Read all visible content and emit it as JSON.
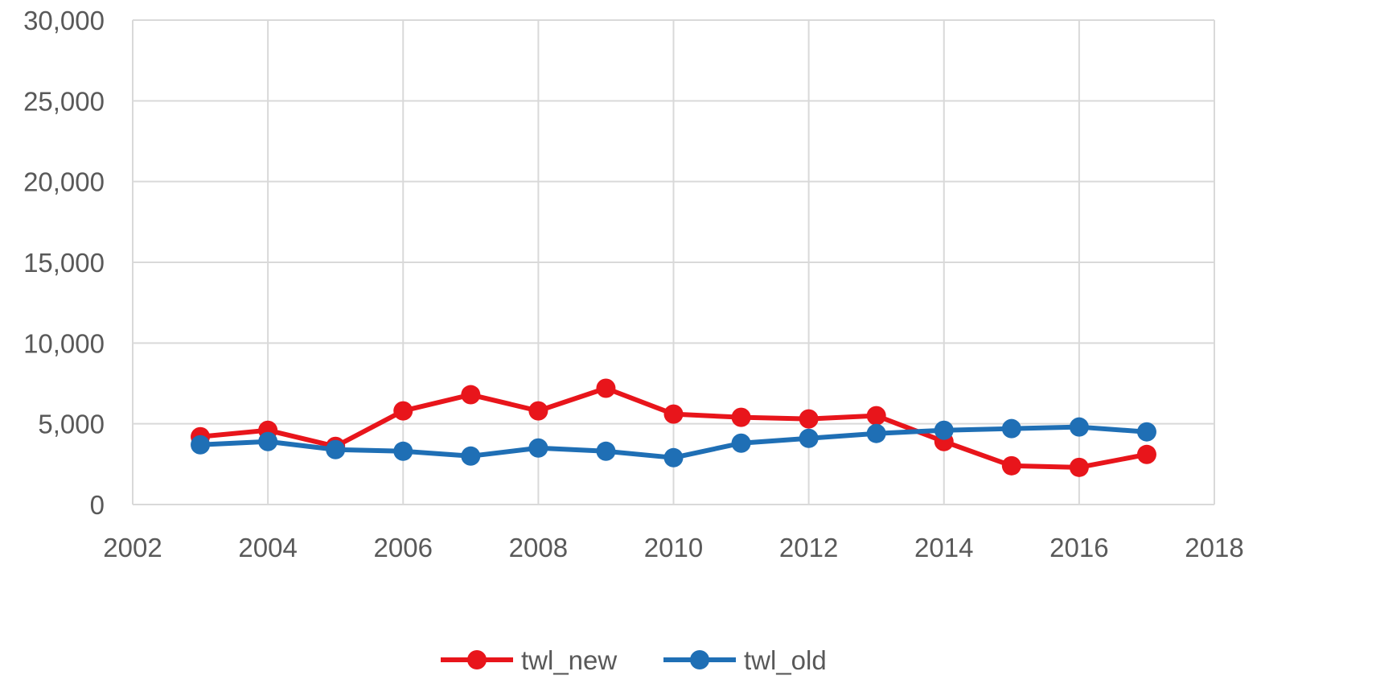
{
  "chart_data": {
    "type": "line",
    "title": "",
    "xlabel": "",
    "ylabel": "",
    "xlim": [
      2002,
      2018
    ],
    "ylim": [
      0,
      30000
    ],
    "x_ticks": [
      2002,
      2004,
      2006,
      2008,
      2010,
      2012,
      2014,
      2016,
      2018
    ],
    "x_tick_labels": [
      "2002",
      "2004",
      "2006",
      "2008",
      "2010",
      "2012",
      "2014",
      "2016",
      "2018"
    ],
    "y_ticks": [
      0,
      5000,
      10000,
      15000,
      20000,
      25000,
      30000
    ],
    "y_tick_labels": [
      "0",
      "5,000",
      "10,000",
      "15,000",
      "20,000",
      "25,000",
      "30,000"
    ],
    "grid": true,
    "legend_position": "bottom",
    "x": [
      2003,
      2004,
      2005,
      2006,
      2007,
      2008,
      2009,
      2010,
      2011,
      2012,
      2013,
      2014,
      2015,
      2016,
      2017
    ],
    "series": [
      {
        "name": "twl_new",
        "color": "#e8151b",
        "values": [
          4200,
          4600,
          3600,
          5800,
          6800,
          5800,
          7200,
          5600,
          5400,
          5300,
          5500,
          3900,
          2400,
          2300,
          3100
        ]
      },
      {
        "name": "twl_old",
        "color": "#1f6fb5",
        "values": [
          3700,
          3900,
          3400,
          3300,
          3000,
          3500,
          3300,
          2900,
          3800,
          4100,
          4400,
          4600,
          4700,
          4800,
          4500
        ]
      }
    ]
  }
}
